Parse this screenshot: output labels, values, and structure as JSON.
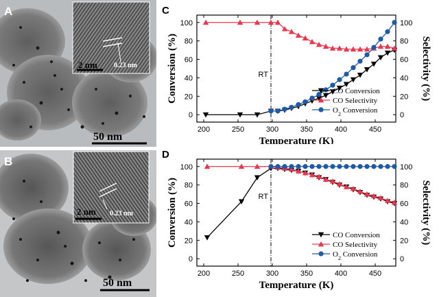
{
  "panels": {
    "A": {
      "letter": "A",
      "scale_main": "50 nm",
      "scale_inset": "2 nm",
      "d_spacing": "0.23 nm"
    },
    "B": {
      "letter": "B",
      "scale_main": "50 nm",
      "scale_inset": "2 nm",
      "d_spacing": "0.23 nm"
    }
  },
  "colors": {
    "co_conversion": "#000000",
    "co_selectivity": "#e8384f",
    "o2_conversion": "#1f5aa6"
  },
  "chart_data": [
    {
      "panel": "C",
      "type": "line",
      "xlabel": "Temperature (K)",
      "ylabel_left": "Conversion (%)",
      "ylabel_right": "Selectivity (%)",
      "xlim": [
        190,
        480
      ],
      "ylim": [
        -8,
        108
      ],
      "xticks": [
        200,
        250,
        300,
        350,
        400,
        450
      ],
      "yticks": [
        0,
        20,
        40,
        60,
        80,
        100
      ],
      "vline": {
        "x": 298,
        "label": "RT"
      },
      "legend_position": "bottom-right",
      "series": [
        {
          "name": "CO Conversion",
          "marker": "triangle-down",
          "axis": "left",
          "x": [
            203,
            253,
            278,
            298,
            308,
            318,
            328,
            338,
            348,
            358,
            368,
            378,
            388,
            398,
            408,
            418,
            428,
            438,
            448,
            458,
            468,
            478
          ],
          "y": [
            0,
            0,
            0,
            4,
            4,
            5,
            7,
            9,
            12,
            15,
            18,
            21,
            25,
            29,
            33,
            38,
            43,
            49,
            55,
            62,
            67,
            70
          ]
        },
        {
          "name": "CO Selectivity",
          "marker": "triangle-up",
          "axis": "right",
          "x": [
            203,
            253,
            278,
            298,
            308,
            318,
            328,
            338,
            348,
            358,
            368,
            378,
            388,
            398,
            408,
            418,
            428,
            438,
            448,
            458,
            468,
            478
          ],
          "y": [
            100,
            100,
            100,
            100,
            100,
            93,
            90,
            86,
            83,
            79,
            76,
            74,
            72,
            72,
            71,
            71,
            71,
            71,
            72,
            74,
            74,
            72
          ]
        },
        {
          "name": "O2 Conversion",
          "marker": "circle",
          "axis": "left",
          "x": [
            298,
            308,
            318,
            328,
            338,
            348,
            358,
            368,
            378,
            388,
            398,
            408,
            418,
            428,
            438,
            448,
            458,
            468,
            478
          ],
          "y": [
            4,
            4,
            6,
            8,
            11,
            14,
            18,
            22,
            27,
            32,
            38,
            44,
            51,
            58,
            65,
            73,
            82,
            90,
            100
          ]
        }
      ],
      "legend": [
        {
          "prefix": "CO",
          "sub": "",
          "suffix": " Conversion"
        },
        {
          "prefix": "CO",
          "sub": "",
          "suffix": " Selectivity"
        },
        {
          "prefix": "O",
          "sub": "2",
          "suffix": "  Conversion"
        }
      ]
    },
    {
      "panel": "D",
      "type": "line",
      "xlabel": "Temperature (K)",
      "ylabel_left": "Conversion (%)",
      "ylabel_right": "Selectivity (%)",
      "xlim": [
        190,
        480
      ],
      "ylim": [
        -8,
        108
      ],
      "xticks": [
        200,
        250,
        300,
        350,
        400,
        450
      ],
      "yticks": [
        0,
        20,
        40,
        60,
        80,
        100
      ],
      "vline": {
        "x": 298,
        "label": "RT"
      },
      "legend_position": "bottom-right",
      "series": [
        {
          "name": "CO Conversion",
          "marker": "triangle-down",
          "axis": "left",
          "x": [
            205,
            255,
            278,
            298,
            308,
            318,
            328,
            338,
            348,
            358,
            368,
            378,
            388,
            398,
            408,
            418,
            428,
            438,
            448,
            458,
            468,
            478
          ],
          "y": [
            23,
            62,
            88,
            98,
            98,
            97,
            96,
            95,
            93,
            91,
            88,
            86,
            83,
            80,
            78,
            75,
            72,
            69,
            67,
            65,
            62,
            60
          ]
        },
        {
          "name": "CO Selectivity",
          "marker": "triangle-up",
          "axis": "right",
          "x": [
            205,
            255,
            278,
            298,
            308,
            318,
            328,
            338,
            348,
            358,
            368,
            378,
            388,
            398,
            408,
            418,
            428,
            438,
            448,
            458,
            468,
            478
          ],
          "y": [
            100,
            100,
            100,
            100,
            99,
            98,
            97,
            95,
            93,
            91,
            89,
            86,
            84,
            81,
            78,
            76,
            73,
            70,
            68,
            66,
            63,
            61
          ]
        },
        {
          "name": "O2 Conversion",
          "marker": "circle",
          "axis": "left",
          "x": [
            298,
            308,
            318,
            328,
            338,
            348,
            358,
            368,
            378,
            388,
            398,
            408,
            418,
            428,
            438,
            448,
            458,
            468,
            478
          ],
          "y": [
            100,
            100,
            100,
            100,
            100,
            100,
            100,
            100,
            100,
            100,
            100,
            100,
            100,
            100,
            100,
            100,
            100,
            100,
            100
          ]
        }
      ],
      "legend": [
        {
          "prefix": "CO",
          "sub": "",
          "suffix": " Conversion"
        },
        {
          "prefix": "CO",
          "sub": "",
          "suffix": " Selectivity"
        },
        {
          "prefix": "O",
          "sub": "2",
          "suffix": "  Conversion"
        }
      ]
    }
  ]
}
